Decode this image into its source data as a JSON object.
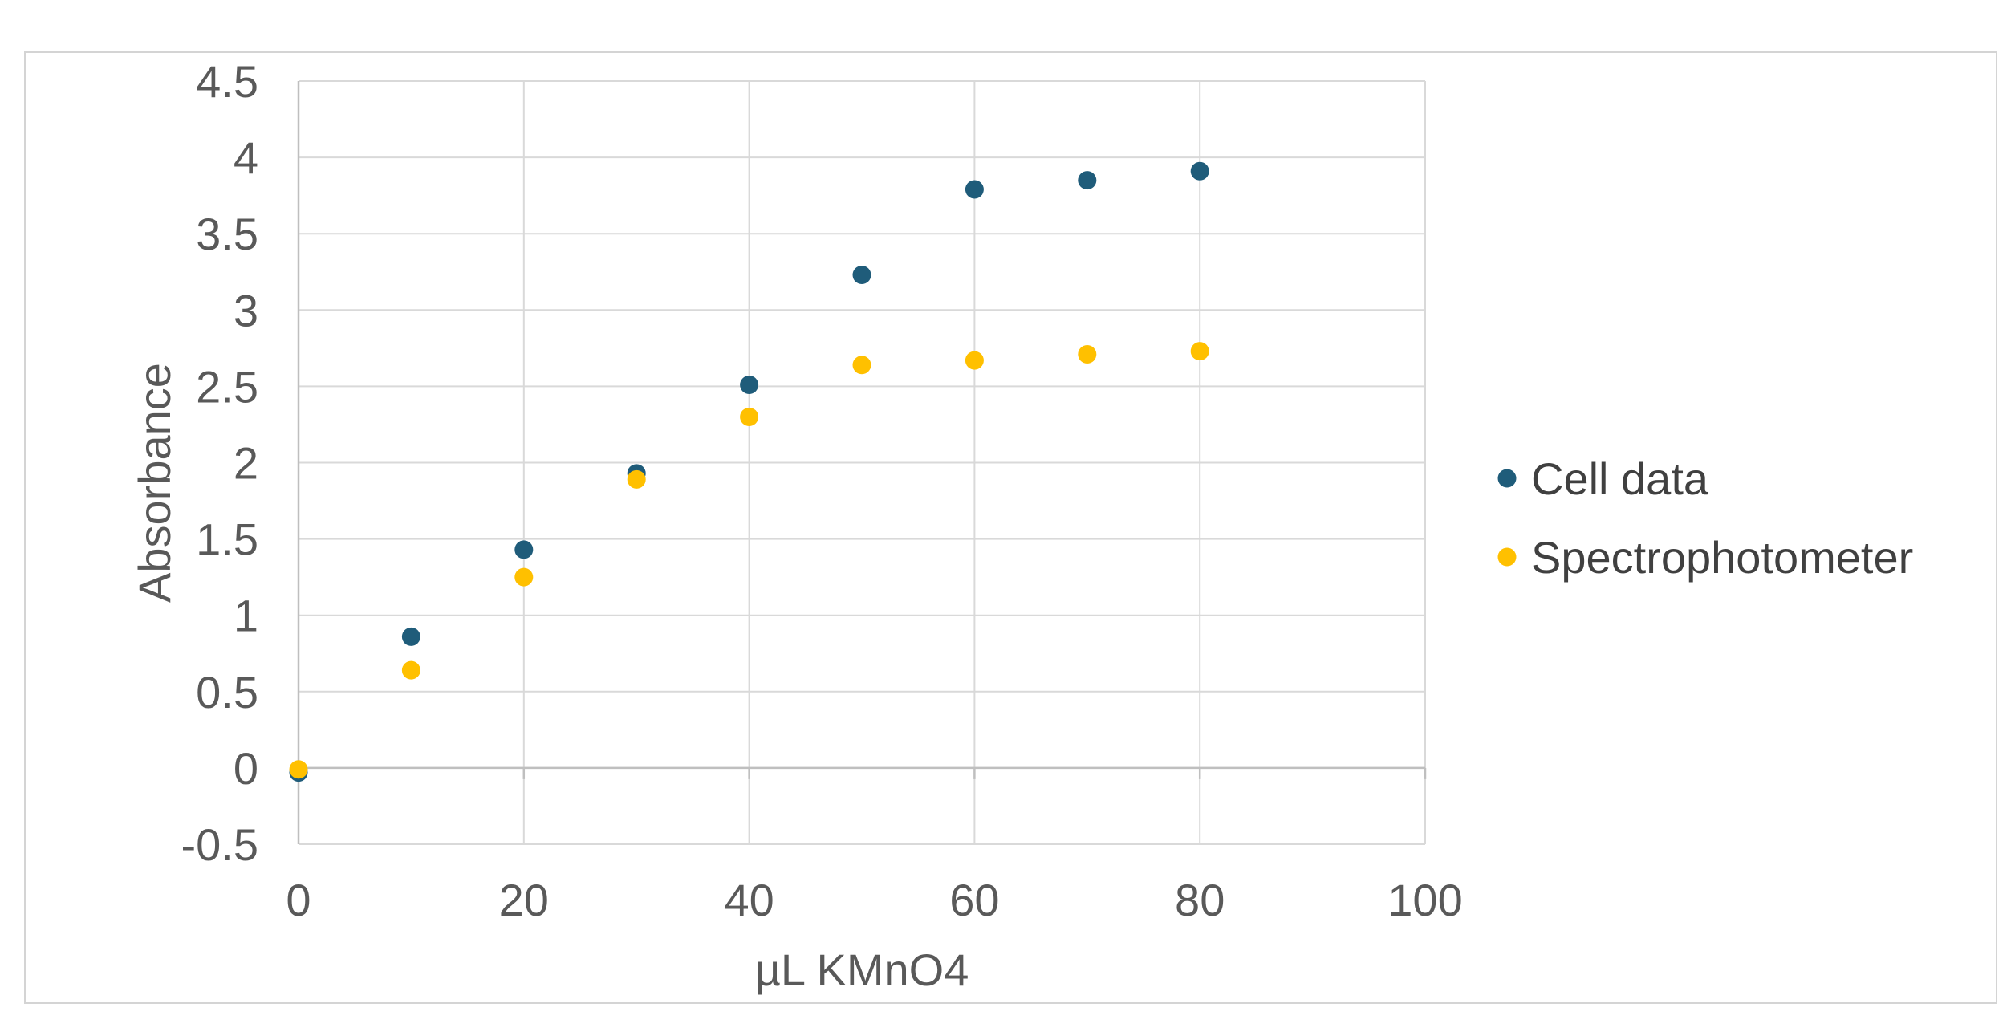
{
  "chart_data": {
    "type": "scatter",
    "title": "",
    "xlabel": "µL KMnO4",
    "ylabel": "Absorbance",
    "xlim": [
      0,
      100
    ],
    "ylim": [
      -0.5,
      4.5
    ],
    "x_ticks": [
      0,
      20,
      40,
      60,
      80,
      100
    ],
    "y_ticks": [
      -0.5,
      0,
      0.5,
      1,
      1.5,
      2,
      2.5,
      3,
      3.5,
      4,
      4.5
    ],
    "x_tick_labels": [
      "0",
      "20",
      "40",
      "60",
      "80",
      "100"
    ],
    "y_tick_labels": [
      "-0.5",
      "0",
      "0.5",
      "1",
      "1.5",
      "2",
      "2.5",
      "3",
      "3.5",
      "4",
      "4.5"
    ],
    "grid": true,
    "legend_position": "right",
    "series": [
      {
        "name": "Cell data",
        "color": "#1f5c7a",
        "x": [
          0,
          10,
          20,
          30,
          40,
          50,
          60,
          70,
          80
        ],
        "y": [
          -0.03,
          0.86,
          1.43,
          1.93,
          2.51,
          3.23,
          3.79,
          3.85,
          3.91
        ]
      },
      {
        "name": "Spectrophotometer",
        "color": "#ffc000",
        "x": [
          0,
          10,
          20,
          30,
          40,
          50,
          60,
          70,
          80
        ],
        "y": [
          -0.01,
          0.64,
          1.25,
          1.89,
          2.3,
          2.64,
          2.67,
          2.71,
          2.73
        ]
      }
    ]
  }
}
